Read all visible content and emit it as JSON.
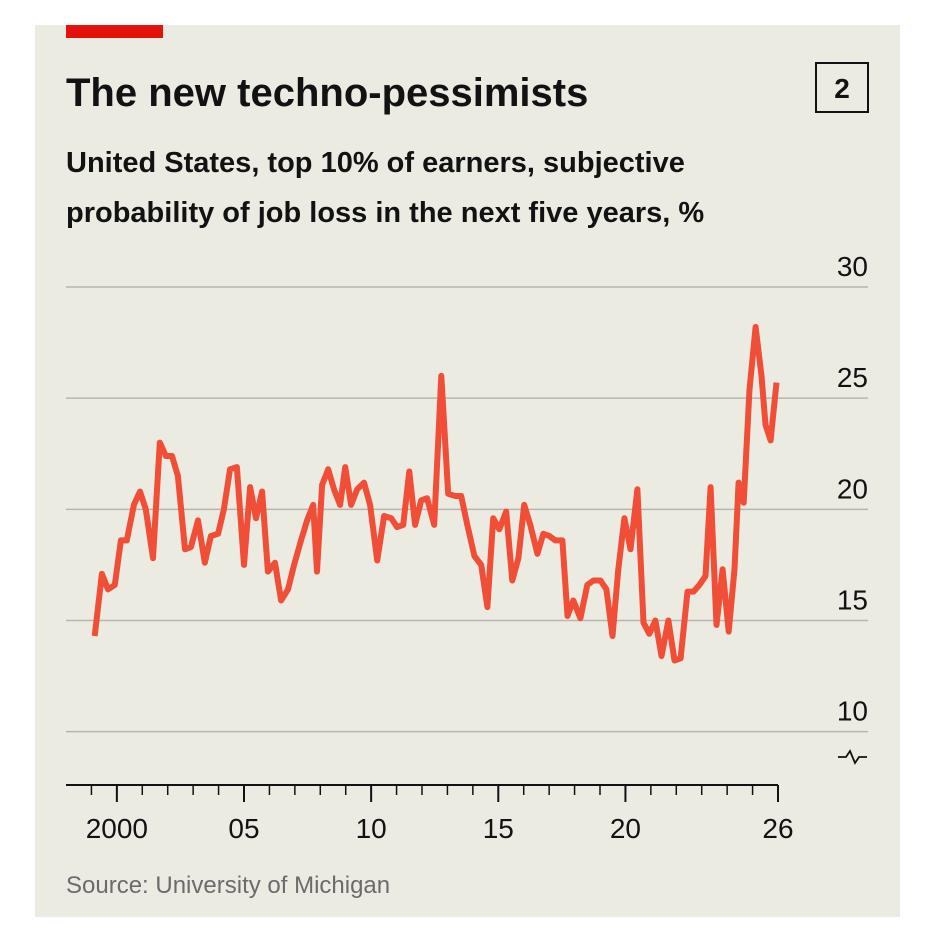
{
  "chart_data": {
    "type": "line",
    "title": "The new techno-pessimists",
    "chart_number": "2",
    "subtitle_lines": [
      "United States, top 10% of earners, subjective",
      "probability of job loss in the next five years, %"
    ],
    "source": "Source: University of Michigan",
    "xlim": [
      1998,
      2026
    ],
    "xticks": [
      {
        "value": 2000,
        "label": "2000"
      },
      {
        "value": 2005,
        "label": "05"
      },
      {
        "value": 2010,
        "label": "10"
      },
      {
        "value": 2015,
        "label": "15"
      },
      {
        "value": 2020,
        "label": "20"
      },
      {
        "value": 2026,
        "label": "26"
      }
    ],
    "ylim": [
      7.6,
      30
    ],
    "yticks": [
      10,
      15,
      20,
      25,
      30
    ],
    "grid": true,
    "x": [
      1999.13,
      1999.41,
      1999.65,
      1999.92,
      2000.16,
      2000.39,
      2000.67,
      2000.91,
      2001.14,
      2001.42,
      2001.69,
      2001.93,
      2002.17,
      2002.4,
      2002.68,
      2002.91,
      2003.19,
      2003.46,
      2003.7,
      2003.98,
      2004.21,
      2004.45,
      2004.72,
      2005.0,
      2005.24,
      2005.47,
      2005.71,
      2005.94,
      2006.22,
      2006.46,
      2006.73,
      2006.97,
      2007.24,
      2007.48,
      2007.72,
      2007.87,
      2008.07,
      2008.31,
      2008.54,
      2008.78,
      2008.98,
      2009.21,
      2009.45,
      2009.72,
      2009.96,
      2010.24,
      2010.51,
      2010.79,
      2011.02,
      2011.26,
      2011.5,
      2011.73,
      2011.97,
      2012.2,
      2012.48,
      2012.76,
      2013.03,
      2013.31,
      2013.54,
      2013.78,
      2014.06,
      2014.33,
      2014.57,
      2014.8,
      2015.04,
      2015.31,
      2015.55,
      2015.79,
      2016.02,
      2016.26,
      2016.54,
      2016.77,
      2017.01,
      2017.24,
      2017.52,
      2017.72,
      2017.95,
      2018.23,
      2018.5,
      2018.74,
      2019.02,
      2019.25,
      2019.49,
      2019.72,
      2019.96,
      2020.2,
      2020.47,
      2020.71,
      2020.94,
      2021.18,
      2021.42,
      2021.69,
      2021.93,
      2022.17,
      2022.44,
      2022.68,
      2022.91,
      2023.15,
      2023.35,
      2023.58,
      2023.82,
      2024.06,
      2024.29,
      2024.45,
      2024.65,
      2024.88,
      2025.12,
      2025.35,
      2025.51,
      2025.71,
      2025.94
    ],
    "series": [
      {
        "color": "#f04e37",
        "values": [
          14.3,
          17.1,
          16.4,
          16.6,
          18.6,
          18.6,
          20.2,
          20.8,
          20.0,
          17.8,
          23.0,
          22.4,
          22.4,
          21.5,
          18.2,
          18.3,
          19.5,
          17.6,
          18.8,
          18.9,
          20.0,
          21.8,
          21.9,
          17.5,
          21.0,
          19.6,
          20.8,
          17.2,
          17.6,
          15.9,
          16.4,
          17.5,
          18.6,
          19.5,
          20.2,
          17.2,
          21.1,
          21.8,
          20.9,
          20.2,
          21.9,
          20.2,
          20.9,
          21.2,
          20.2,
          17.7,
          19.7,
          19.6,
          19.2,
          19.3,
          21.7,
          19.3,
          20.4,
          20.5,
          19.3,
          26.0,
          20.7,
          20.6,
          20.6,
          19.3,
          17.9,
          17.5,
          15.6,
          19.6,
          19.1,
          19.9,
          16.8,
          17.8,
          20.2,
          19.3,
          18.0,
          18.9,
          18.8,
          18.6,
          18.6,
          15.2,
          15.9,
          15.1,
          16.6,
          16.8,
          16.8,
          16.4,
          14.3,
          17.3,
          19.6,
          18.2,
          20.9,
          14.9,
          14.4,
          15.0,
          13.4,
          15.0,
          13.2,
          13.3,
          16.3,
          16.3,
          16.6,
          17.0,
          21.0,
          14.8,
          17.3,
          14.5,
          17.3,
          21.2,
          20.3,
          25.4,
          28.2,
          26.0,
          23.8,
          23.1,
          25.7
        ]
      }
    ]
  }
}
